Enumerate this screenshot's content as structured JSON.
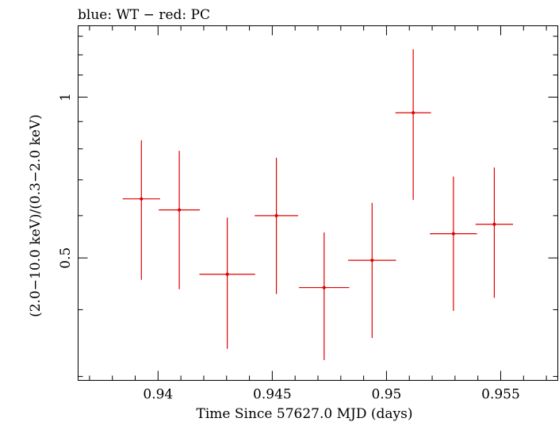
{
  "chart_data": {
    "type": "scatter",
    "title": "blue: WT − red: PC",
    "xlabel": "Time Since 57627.0 MJD (days)",
    "ylabel": "(2.0−10.0 keV)/(0.3−2.0 keV)",
    "xlim": [
      0.9365,
      0.9575
    ],
    "ylim": [
      0.295,
      1.36
    ],
    "yscale": "log",
    "grid": false,
    "legend": "none",
    "x_ticks": [
      0.94,
      0.945,
      0.95,
      0.955
    ],
    "x_tick_labels": [
      "0.94",
      "0.945",
      "0.95",
      "0.955"
    ],
    "y_ticks": [
      0.5,
      1
    ],
    "y_tick_labels": [
      "0.5",
      "1"
    ],
    "series": [
      {
        "color": "#e00000",
        "points": [
          {
            "x": 0.93927,
            "xerr": 0.00082,
            "y": 0.645,
            "ylo": 0.455,
            "yhi": 0.83
          },
          {
            "x": 0.94093,
            "xerr": 0.0009,
            "y": 0.615,
            "ylo": 0.437,
            "yhi": 0.793
          },
          {
            "x": 0.94303,
            "xerr": 0.00122,
            "y": 0.466,
            "ylo": 0.338,
            "yhi": 0.595
          },
          {
            "x": 0.94518,
            "xerr": 0.00095,
            "y": 0.6,
            "ylo": 0.428,
            "yhi": 0.77
          },
          {
            "x": 0.94727,
            "xerr": 0.0011,
            "y": 0.44,
            "ylo": 0.322,
            "yhi": 0.558
          },
          {
            "x": 0.94937,
            "xerr": 0.00105,
            "y": 0.495,
            "ylo": 0.354,
            "yhi": 0.634
          },
          {
            "x": 0.95117,
            "xerr": 0.00078,
            "y": 0.935,
            "ylo": 0.642,
            "yhi": 1.229
          },
          {
            "x": 0.95293,
            "xerr": 0.00103,
            "y": 0.555,
            "ylo": 0.398,
            "yhi": 0.71
          },
          {
            "x": 0.95472,
            "xerr": 0.00082,
            "y": 0.578,
            "ylo": 0.421,
            "yhi": 0.738
          }
        ]
      }
    ]
  }
}
